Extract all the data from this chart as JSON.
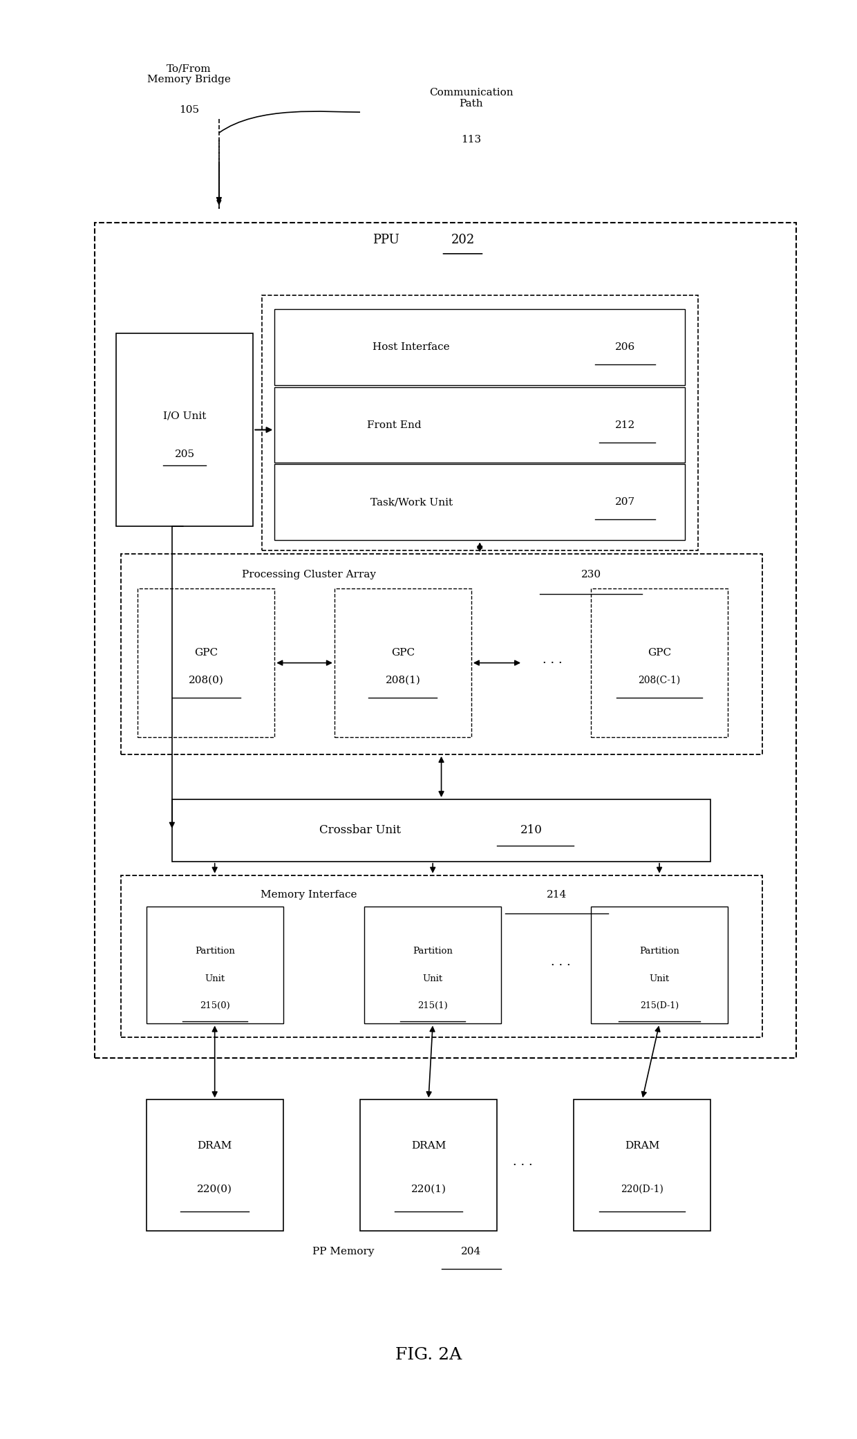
{
  "fig_width": 12.4,
  "fig_height": 20.81,
  "bg_color": "#ffffff",
  "title": "FIG. 2A",
  "top_label": "To/From\nMemory Bridge",
  "top_label_num": "105",
  "comm_path_label": "Communication\nPath",
  "comm_path_num": "113",
  "ppu_label": "PPU",
  "ppu_num": "202",
  "io_unit_label": "I/O Unit",
  "io_unit_num": "205",
  "host_interface_label": "Host Interface",
  "host_interface_num": "206",
  "front_end_label": "Front End",
  "front_end_num": "212",
  "task_work_label": "Task/Work Unit",
  "task_work_num": "207",
  "pca_label": "Processing Cluster Array",
  "pca_num": "230",
  "gpc0_label": "GPC\n208(0)",
  "gpc1_label": "GPC\n208(1)",
  "gpc2_label": "GPC\n208(C-1)",
  "crossbar_label": "Crossbar Unit",
  "crossbar_num": "210",
  "mem_interface_label": "Memory Interface",
  "mem_interface_num": "214",
  "part0_label": "Partition\nUnit\n215(0)",
  "part1_label": "Partition\nUnit\n215(1)",
  "part2_label": "Partition\nUnit\n215(D-1)",
  "dram0_label": "DRAM\n220(0)",
  "dram1_label": "DRAM\n220(1)",
  "dram2_label": "DRAM\n220(D-1)",
  "pp_memory_label": "PP Memory",
  "pp_memory_num": "204"
}
